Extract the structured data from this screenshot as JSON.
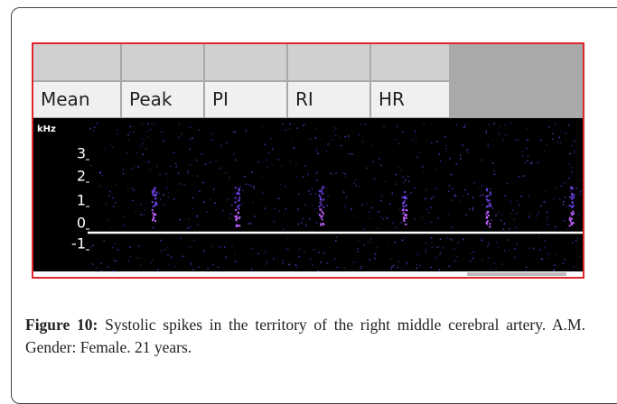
{
  "screenshot": {
    "columns": [
      "Mean",
      "Peak",
      "PI",
      "RI",
      "HR"
    ],
    "axis_unit": "kHz",
    "axis_labels": [
      "3",
      "2",
      "1",
      "0",
      "-1"
    ]
  },
  "caption": {
    "label": "Figure 10:",
    "text": "Systolic spikes in the territory of the right middle cerebral artery. A.M. Gender: Female. 21 years."
  }
}
